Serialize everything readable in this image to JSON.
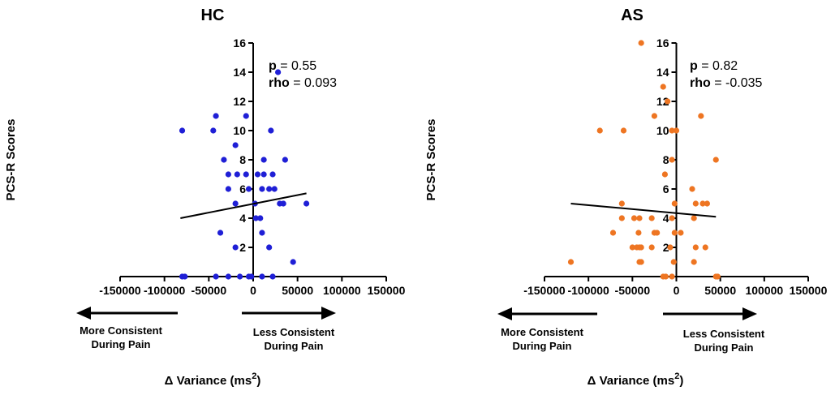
{
  "chart_data": [
    {
      "type": "scatter",
      "title": "HC",
      "ylabel": "PCS-R Scores",
      "xlabel": "Δ Variance (ms",
      "xlabel_sup": "2",
      "xlabel_close": ")",
      "xlim": [
        -150000,
        150000
      ],
      "ylim": [
        0,
        16
      ],
      "xticks": [
        "-150000",
        "-100000",
        "-50000",
        "0",
        "50000",
        "100000",
        "150000"
      ],
      "yticks": [
        "2",
        "4",
        "6",
        "8",
        "10",
        "12",
        "14",
        "16"
      ],
      "color": "#1f1fd6",
      "stats": {
        "p_label": "p",
        "p_value": "= 0.55",
        "rho_label": "rho",
        "rho_value": "= 0.093"
      },
      "arrow_left": {
        "line1": "More Consistent",
        "line2": "During Pain"
      },
      "arrow_right": {
        "line1": "Less Consistent",
        "line2": "During Pain"
      },
      "fit": {
        "x1": -82000,
        "y1": 4.0,
        "x2": 60000,
        "y2": 5.7
      },
      "points": [
        {
          "x": -80000,
          "y": 10
        },
        {
          "x": -45000,
          "y": 10
        },
        {
          "x": -42000,
          "y": 11
        },
        {
          "x": -33000,
          "y": 8
        },
        {
          "x": -28000,
          "y": 7
        },
        {
          "x": -28000,
          "y": 6
        },
        {
          "x": -20000,
          "y": 9
        },
        {
          "x": -18000,
          "y": 7
        },
        {
          "x": -20000,
          "y": 5
        },
        {
          "x": -37000,
          "y": 3
        },
        {
          "x": -20000,
          "y": 2
        },
        {
          "x": -8000,
          "y": 11
        },
        {
          "x": -5000,
          "y": 6
        },
        {
          "x": -8000,
          "y": 7
        },
        {
          "x": 5000,
          "y": 7
        },
        {
          "x": 2000,
          "y": 5
        },
        {
          "x": 3000,
          "y": 4
        },
        {
          "x": 8000,
          "y": 4
        },
        {
          "x": 10000,
          "y": 3
        },
        {
          "x": 12000,
          "y": 8
        },
        {
          "x": 12000,
          "y": 7
        },
        {
          "x": 10000,
          "y": 6
        },
        {
          "x": 18000,
          "y": 6
        },
        {
          "x": 20000,
          "y": 10
        },
        {
          "x": 22000,
          "y": 7
        },
        {
          "x": 24000,
          "y": 6
        },
        {
          "x": 28000,
          "y": 14
        },
        {
          "x": 30000,
          "y": 5
        },
        {
          "x": 34000,
          "y": 5
        },
        {
          "x": 36000,
          "y": 8
        },
        {
          "x": 18000,
          "y": 2
        },
        {
          "x": 45000,
          "y": 1
        },
        {
          "x": 60000,
          "y": 5
        },
        {
          "x": -80000,
          "y": 0
        },
        {
          "x": -77000,
          "y": 0
        },
        {
          "x": -42000,
          "y": 0
        },
        {
          "x": -28000,
          "y": 0
        },
        {
          "x": -15000,
          "y": 0
        },
        {
          "x": -5000,
          "y": 0
        },
        {
          "x": -2000,
          "y": 0
        },
        {
          "x": 10000,
          "y": 0
        },
        {
          "x": 22000,
          "y": 0
        }
      ]
    },
    {
      "type": "scatter",
      "title": "AS",
      "ylabel": "PCS-R Scores",
      "xlabel": "Δ Variance (ms",
      "xlabel_sup": "2",
      "xlabel_close": ")",
      "xlim": [
        -150000,
        150000
      ],
      "ylim": [
        0,
        16
      ],
      "xticks": [
        "-150000",
        "-100000",
        "-50000",
        "0",
        "50000",
        "100000",
        "150000"
      ],
      "yticks": [
        "2",
        "4",
        "6",
        "8",
        "10",
        "12",
        "14",
        "16"
      ],
      "color": "#ee7522",
      "stats": {
        "p_label": "p",
        "p_value": "= 0.82",
        "rho_label": "rho",
        "rho_value": "= -0.035"
      },
      "arrow_left": {
        "line1": "More Consistent",
        "line2": "During Pain"
      },
      "arrow_right": {
        "line1": "Less Consistent",
        "line2": "During Pain"
      },
      "fit": {
        "x1": -120000,
        "y1": 5.0,
        "x2": 45000,
        "y2": 4.1
      },
      "points": [
        {
          "x": -120000,
          "y": 1
        },
        {
          "x": -87000,
          "y": 10
        },
        {
          "x": -60000,
          "y": 10
        },
        {
          "x": -62000,
          "y": 5
        },
        {
          "x": -62000,
          "y": 4
        },
        {
          "x": -72000,
          "y": 3
        },
        {
          "x": -50000,
          "y": 2
        },
        {
          "x": -45000,
          "y": 2
        },
        {
          "x": -42000,
          "y": 2
        },
        {
          "x": -40000,
          "y": 2
        },
        {
          "x": -40000,
          "y": 1
        },
        {
          "x": -42000,
          "y": 1
        },
        {
          "x": -43000,
          "y": 3
        },
        {
          "x": -42000,
          "y": 4
        },
        {
          "x": -48000,
          "y": 4
        },
        {
          "x": -40000,
          "y": 16
        },
        {
          "x": -28000,
          "y": 2
        },
        {
          "x": -25000,
          "y": 3
        },
        {
          "x": -22000,
          "y": 3
        },
        {
          "x": -28000,
          "y": 4
        },
        {
          "x": -25000,
          "y": 11
        },
        {
          "x": -15000,
          "y": 13
        },
        {
          "x": -13000,
          "y": 7
        },
        {
          "x": -10000,
          "y": 12
        },
        {
          "x": -5000,
          "y": 10
        },
        {
          "x": -5000,
          "y": 8
        },
        {
          "x": -5000,
          "y": 4
        },
        {
          "x": -7000,
          "y": 2
        },
        {
          "x": 0,
          "y": 10
        },
        {
          "x": -2000,
          "y": 5
        },
        {
          "x": -2000,
          "y": 3
        },
        {
          "x": -3000,
          "y": 1
        },
        {
          "x": 5000,
          "y": 3
        },
        {
          "x": 18000,
          "y": 6
        },
        {
          "x": 20000,
          "y": 4
        },
        {
          "x": 22000,
          "y": 5
        },
        {
          "x": 28000,
          "y": 11
        },
        {
          "x": 30000,
          "y": 5
        },
        {
          "x": 35000,
          "y": 5
        },
        {
          "x": 33000,
          "y": 2
        },
        {
          "x": 22000,
          "y": 2
        },
        {
          "x": 20000,
          "y": 1
        },
        {
          "x": 45000,
          "y": 8
        },
        {
          "x": 45000,
          "y": 0
        },
        {
          "x": 47000,
          "y": 0
        },
        {
          "x": -15000,
          "y": 0
        },
        {
          "x": -12000,
          "y": 0
        },
        {
          "x": -5000,
          "y": 0
        }
      ]
    }
  ]
}
